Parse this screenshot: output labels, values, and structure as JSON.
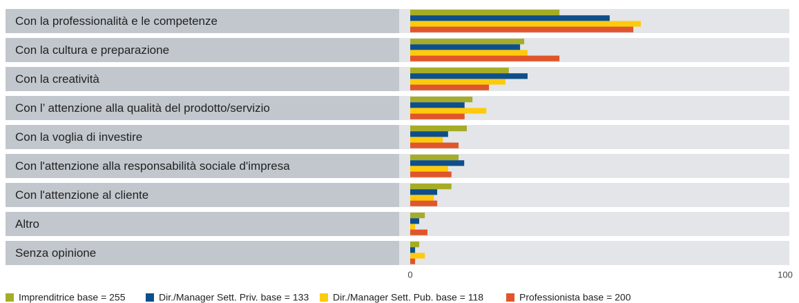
{
  "chart_data": {
    "type": "hbar",
    "categories": [
      "Con la professionalità e le competenze",
      "Con la cultura e preparazione",
      "Con la creatività",
      "Con l’ attenzione alla qualità del prodotto/servizio",
      "Con la voglia di investire",
      "Con l'attenzione alla responsabilità sociale d'impresa",
      "Con l'attenzione al cliente",
      "Altro",
      "Senza opinione"
    ],
    "series": [
      {
        "name": "Imprenditrice base = 255",
        "color": "#a5ad28",
        "values": [
          39.8,
          30.4,
          26.3,
          16.6,
          15.1,
          12.9,
          11,
          3.9,
          2.4
        ]
      },
      {
        "name": "Dir./Manager Sett. Priv. base = 133",
        "color": "#0e4f8b",
        "values": [
          53.2,
          29.3,
          31.3,
          14.5,
          10.1,
          14.4,
          7.2,
          2.4,
          1.3
        ]
      },
      {
        "name": "Dir./Manager Sett. Pub. base = 118",
        "color": "#fdcb0b",
        "values": [
          61.5,
          31.3,
          25.4,
          20.3,
          8.7,
          10.1,
          6.3,
          1.3,
          3.9
        ]
      },
      {
        "name": "Professionista base = 200",
        "color": "#e0552b",
        "values": [
          59.5,
          39.8,
          21,
          14.5,
          12.9,
          11,
          7.2,
          4.6,
          1.3
        ]
      }
    ],
    "xlim": [
      0,
      100
    ],
    "xticks": [
      0,
      100
    ],
    "legend": "bottom-left"
  }
}
